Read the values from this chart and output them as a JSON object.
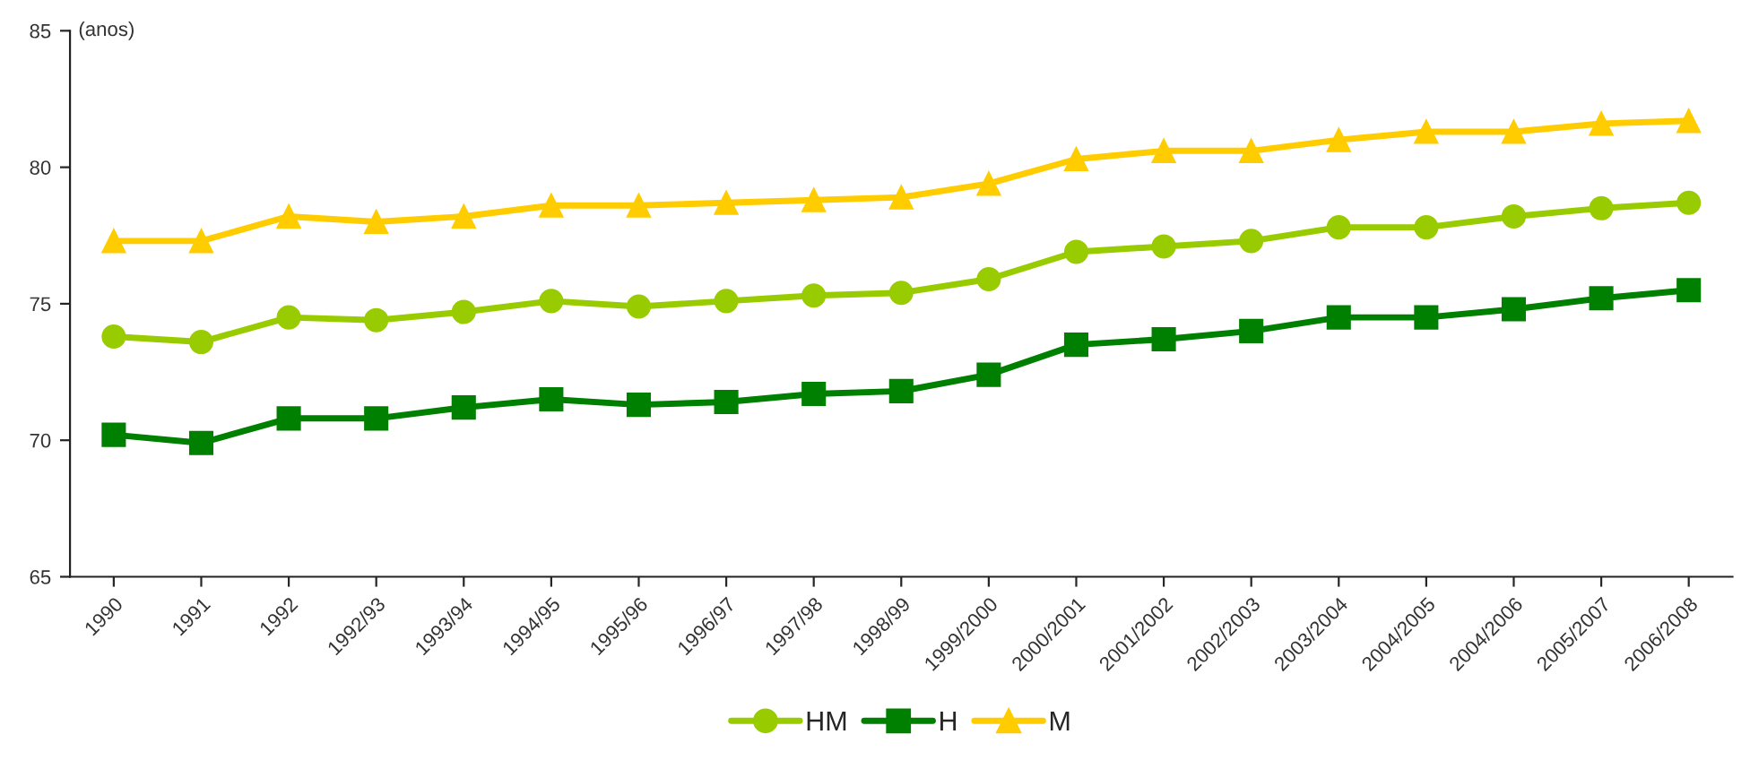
{
  "chart_data": {
    "type": "line",
    "ylabel": "(anos)",
    "categories": [
      "1990",
      "1991",
      "1992",
      "1992/93",
      "1993/94",
      "1994/95",
      "1995/96",
      "1996/97",
      "1997/98",
      "1998/99",
      "1999/2000",
      "2000/2001",
      "2001/2002",
      "2002/2003",
      "2003/2004",
      "2004/2005",
      "2004/2006",
      "2005/2007",
      "2006/2008"
    ],
    "series": [
      {
        "name": "HM",
        "color": "#99cc00",
        "marker": "circle",
        "values": [
          73.8,
          73.6,
          74.5,
          74.4,
          74.7,
          75.1,
          74.9,
          75.1,
          75.3,
          75.4,
          75.9,
          76.9,
          77.1,
          77.3,
          77.8,
          77.8,
          78.2,
          78.5,
          78.7
        ]
      },
      {
        "name": "H",
        "color": "#008000",
        "marker": "square",
        "values": [
          70.2,
          69.9,
          70.8,
          70.8,
          71.2,
          71.5,
          71.3,
          71.4,
          71.7,
          71.8,
          72.4,
          73.5,
          73.7,
          74.0,
          74.5,
          74.5,
          74.8,
          75.2,
          75.5
        ]
      },
      {
        "name": "M",
        "color": "#ffcc00",
        "marker": "triangle",
        "values": [
          77.3,
          77.3,
          78.2,
          78.0,
          78.2,
          78.6,
          78.6,
          78.7,
          78.8,
          78.9,
          79.4,
          80.3,
          80.6,
          80.6,
          81.0,
          81.3,
          81.3,
          81.6,
          81.7
        ]
      }
    ],
    "ylim": [
      65,
      85
    ],
    "yticks": [
      65,
      70,
      75,
      80,
      85
    ],
    "grid": false,
    "legend": "bottom"
  }
}
